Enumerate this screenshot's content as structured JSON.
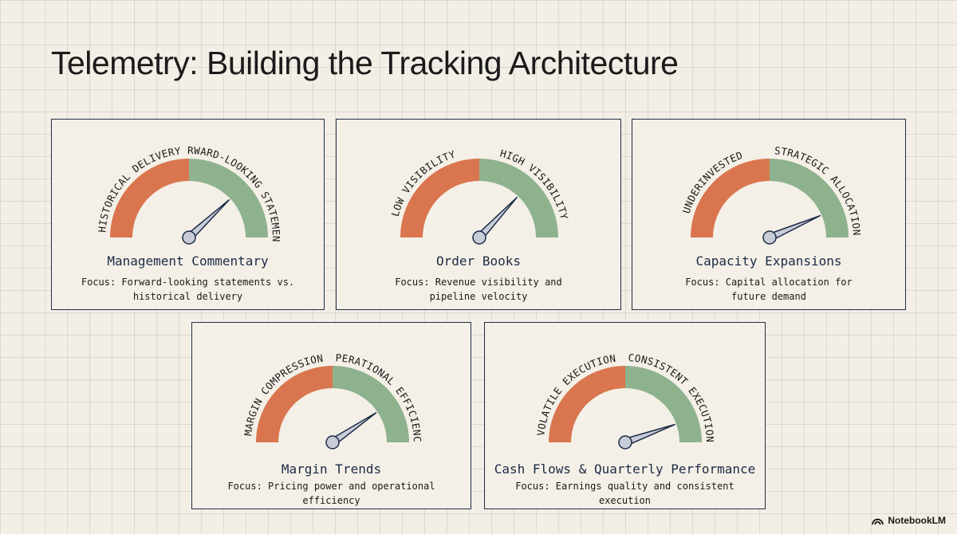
{
  "page": {
    "title": "Telemetry: Building the Tracking Architecture"
  },
  "colors": {
    "low_zone": "#d9764f",
    "high_zone": "#8fb28e",
    "needle": "#c7ccd7",
    "needle_stroke": "#1c2b47",
    "border": "#1f2d44"
  },
  "cards": [
    {
      "title": "Management Commentary",
      "description": "Focus: Forward-looking statements vs. historical delivery",
      "left_label": "HISTORICAL DELIVERY",
      "right_label": "FORWARD-LOOKING STATEMENTS",
      "needle_value": 0.76
    },
    {
      "title": "Order Books",
      "description": "Focus: Revenue visibility and pipeline velocity",
      "left_label": "LOW VISIBILITY",
      "right_label": "HIGH VISIBILITY",
      "needle_value": 0.74
    },
    {
      "title": "Capacity Expansions",
      "description": "Focus: Capital allocation for future demand",
      "left_label": "UNDERINVESTED",
      "right_label": "STRATEGIC ALLOCATION",
      "needle_value": 0.87
    },
    {
      "title": "Margin Trends",
      "description": "Focus: Pricing power and operational efficiency",
      "left_label": "MARGIN COMPRESSION",
      "right_label": "OPERATIONAL EFFICIENCY",
      "needle_value": 0.81
    },
    {
      "title": "Cash Flows & Quarterly Performance",
      "description": "Focus: Earnings quality and consistent execution",
      "left_label": "VOLATILE EXECUTION",
      "right_label": "CONSISTENT EXECUTION",
      "needle_value": 0.89
    }
  ],
  "branding": {
    "text": "NotebookLM",
    "icon": "notebooklm-logo-icon"
  }
}
